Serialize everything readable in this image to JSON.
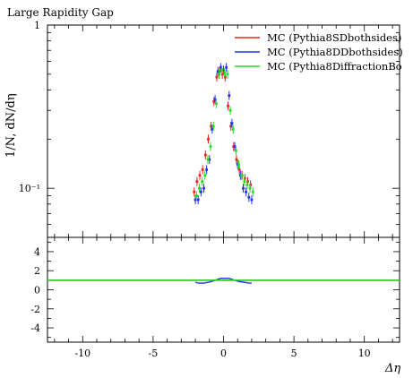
{
  "chart_data": {
    "type": "scatter",
    "title": "Large Rapidity Gap",
    "xlabel": "Δη",
    "ylabel": "1/N, dN/dη",
    "ratio_ylabel": "",
    "xlim": [
      -12.5,
      12.5
    ],
    "ylim": [
      0.05,
      1.0
    ],
    "yscale": "log",
    "ratio_ylim": [
      -5.5,
      5.5
    ],
    "x_ticks": [
      -10,
      -5,
      0,
      5,
      10
    ],
    "x_tick_labels": [
      "-10",
      "-5",
      "0",
      "5",
      "10"
    ],
    "y_ticks": [
      1,
      0.1
    ],
    "y_tick_labels": [
      "1",
      "10⁻¹"
    ],
    "ratio_ticks": [
      4,
      2,
      0,
      -2,
      -4
    ],
    "ratio_tick_labels": [
      "4",
      "2",
      "0",
      "-2",
      "-4"
    ],
    "legend_position": "top-right",
    "x": [
      -2.0,
      -1.8,
      -1.6,
      -1.4,
      -1.2,
      -1.0,
      -0.8,
      -0.6,
      -0.4,
      -0.2,
      0.0,
      0.2,
      0.4,
      0.6,
      0.8,
      1.0,
      1.2,
      1.4,
      1.6,
      1.8,
      2.0
    ],
    "series": [
      {
        "name": "MC (Pythia8SDbothsides)",
        "color": "#ee2222",
        "values": [
          0.095,
          0.11,
          0.12,
          0.13,
          0.16,
          0.2,
          0.24,
          0.34,
          0.48,
          0.52,
          0.5,
          0.48,
          0.32,
          0.24,
          0.18,
          0.15,
          0.13,
          0.12,
          0.115,
          0.11,
          0.105
        ],
        "ratio": [
          1.0,
          1.0,
          1.0,
          1.0,
          1.0,
          1.0,
          1.0,
          1.0,
          1.0,
          1.0,
          1.0,
          1.0,
          1.0,
          1.0,
          1.0,
          1.0,
          1.0,
          1.0,
          1.0,
          1.0,
          1.0
        ]
      },
      {
        "name": "MC (Pythia8DDbothsides)",
        "color": "#2233ee",
        "values": [
          0.085,
          0.085,
          0.095,
          0.1,
          0.13,
          0.15,
          0.23,
          0.35,
          0.52,
          0.55,
          0.53,
          0.55,
          0.37,
          0.25,
          0.18,
          0.14,
          0.12,
          0.1,
          0.095,
          0.088,
          0.085
        ],
        "ratio": [
          0.8,
          0.7,
          0.7,
          0.7,
          0.75,
          0.8,
          0.9,
          1.0,
          1.1,
          1.2,
          1.2,
          1.2,
          1.2,
          1.1,
          1.0,
          0.9,
          0.85,
          0.8,
          0.75,
          0.7,
          0.7
        ]
      },
      {
        "name": "MC (Pythia8DiffractionBo",
        "color": "#22dd22",
        "values": [
          0.09,
          0.1,
          0.11,
          0.12,
          0.15,
          0.18,
          0.24,
          0.33,
          0.5,
          0.53,
          0.51,
          0.5,
          0.3,
          0.23,
          0.17,
          0.14,
          0.12,
          0.11,
          0.105,
          0.1,
          0.095
        ],
        "ratio": [
          1.0,
          1.0,
          1.0,
          1.0,
          1.0,
          1.0,
          1.0,
          1.0,
          1.0,
          1.0,
          1.0,
          1.0,
          1.0,
          1.0,
          1.0,
          1.0,
          1.0,
          1.0,
          1.0,
          1.0,
          1.0
        ]
      }
    ]
  }
}
